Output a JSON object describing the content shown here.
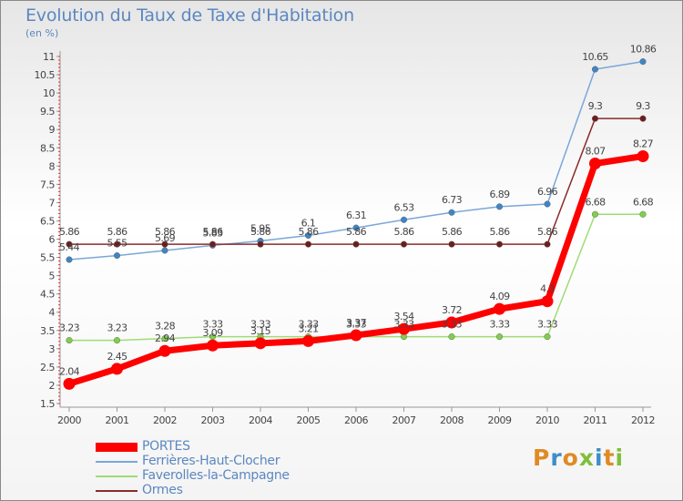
{
  "title": "Evolution du Taux de Taxe d'Habitation",
  "subtitle": "(en %)",
  "brand": {
    "letters": [
      "P",
      "r",
      "o",
      "x",
      "i",
      "t",
      "i"
    ],
    "colors": [
      "#e08a24",
      "#3d8ec9",
      "#e08a24",
      "#7fbf3a",
      "#3d8ec9",
      "#e08a24",
      "#7fbf3a"
    ]
  },
  "chart_data": {
    "type": "line",
    "categories": [
      "2000",
      "2001",
      "2002",
      "2003",
      "2004",
      "2005",
      "2006",
      "2007",
      "2008",
      "2009",
      "2010",
      "2011",
      "2012"
    ],
    "ylim": [
      1.5,
      11
    ],
    "yticks": [
      "1.5",
      "2",
      "2.5",
      "3",
      "3.5",
      "4",
      "4.5",
      "5",
      "5.5",
      "6",
      "6.5",
      "7",
      "7.5",
      "8",
      "8.5",
      "9",
      "9.5",
      "10",
      "10.5",
      "11"
    ],
    "grid": false,
    "legend_position": "bottom-left",
    "series": [
      {
        "name": "PORTES",
        "color": "#ff0000",
        "values": [
          2.04,
          2.45,
          2.94,
          3.09,
          3.15,
          3.21,
          3.37,
          3.54,
          3.72,
          4.09,
          4.3,
          8.07,
          8.27
        ],
        "labels": [
          "2.04",
          "2.45",
          "2.94",
          "3.09",
          "3.15",
          "3.21",
          "3.37",
          "3.54",
          "3.72",
          "4.09",
          "4.3",
          "8.07",
          "8.27"
        ]
      },
      {
        "name": "Ferrières-Haut-Clocher",
        "color": "#7aa7d8",
        "values": [
          5.44,
          5.55,
          5.69,
          5.83,
          5.95,
          6.1,
          6.31,
          6.53,
          6.73,
          6.89,
          6.96,
          10.65,
          10.86
        ],
        "labels": [
          "5.44",
          "5.55",
          "5.69",
          "5.83",
          "5.95",
          "6.1",
          "6.31",
          "6.53",
          "6.73",
          "6.89",
          "6.96",
          "10.65",
          "10.86"
        ]
      },
      {
        "name": "Faverolles-la-Campagne",
        "color": "#9fdc73",
        "values": [
          3.23,
          3.23,
          3.28,
          3.33,
          3.33,
          3.33,
          3.33,
          3.33,
          3.33,
          3.33,
          3.33,
          6.68,
          6.68
        ],
        "labels": [
          "3.23",
          "3.23",
          "3.28",
          "3.33",
          "3.33",
          "3.33",
          "3.33",
          "3.33",
          "3.33",
          "3.33",
          "3.33",
          "6.68",
          "6.68"
        ]
      },
      {
        "name": "Ormes",
        "color": "#8b2b2b",
        "values": [
          5.86,
          5.86,
          5.86,
          5.86,
          5.86,
          5.86,
          5.86,
          5.86,
          5.86,
          5.86,
          5.86,
          9.3,
          9.3
        ],
        "labels": [
          "5.86",
          "5.86",
          "5.86",
          "5.86",
          "5.86",
          "5.86",
          "5.86",
          "5.86",
          "5.86",
          "5.86",
          "5.86",
          "9.3",
          "9.3"
        ]
      }
    ]
  }
}
